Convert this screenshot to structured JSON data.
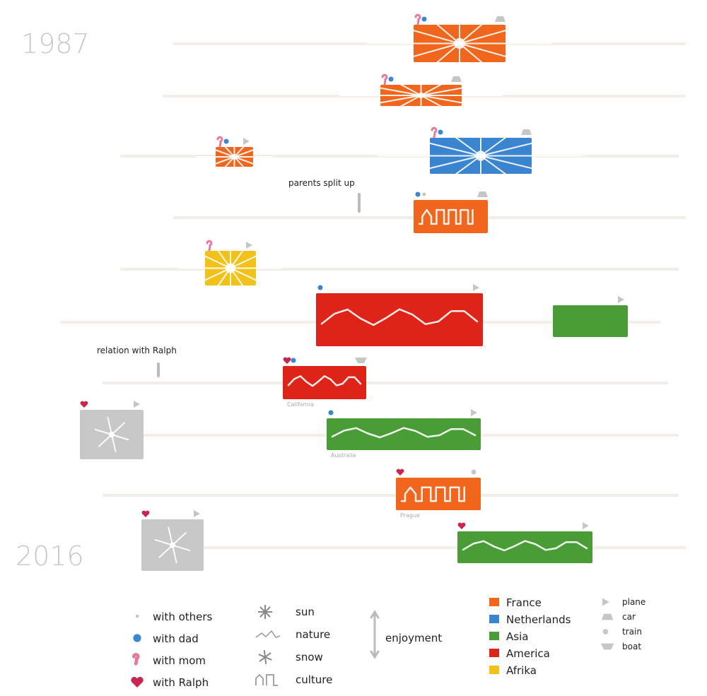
{
  "years": {
    "start": "1987",
    "end": "2016"
  },
  "annotations": [
    {
      "text": "parents split up"
    },
    {
      "text": "relation with Ralph"
    }
  ],
  "colors": {
    "France": "#f0661c",
    "Netherlands": "#3a84d0",
    "Asia": "#4a9d36",
    "America": "#de2418",
    "Afrika": "#f2c21a",
    "unknown": "#c8c8c8",
    "timeline": "#f3eee8",
    "dad": "#3a86cf",
    "mom": "#e57b9b",
    "ralph": "#c8264f",
    "others": "#c4c4c4"
  },
  "trips": [
    {
      "region": "France",
      "theme": "sun",
      "with": [
        "mom",
        "dad"
      ],
      "transport": "car"
    },
    {
      "region": "France",
      "theme": "sun",
      "with": [
        "mom",
        "dad"
      ],
      "transport": "car"
    },
    {
      "region": "France",
      "theme": "sun",
      "with": [
        "mom",
        "dad"
      ],
      "transport": "plane"
    },
    {
      "region": "Netherlands",
      "theme": "sun",
      "with": [
        "mom",
        "dad"
      ],
      "transport": "car"
    },
    {
      "region": "France",
      "theme": "culture",
      "with": [
        "dad",
        "others"
      ],
      "transport": "car"
    },
    {
      "region": "Afrika",
      "theme": "sun",
      "with": [
        "mom"
      ],
      "transport": "plane"
    },
    {
      "region": "America",
      "theme": "nature",
      "with": [
        "dad"
      ],
      "transport": "plane"
    },
    {
      "region": "Asia",
      "theme": "",
      "with": [],
      "transport": "plane"
    },
    {
      "region": "America",
      "theme": "nature",
      "with": [
        "ralph",
        "dad"
      ],
      "transport": "boat",
      "place": "California"
    },
    {
      "region": "unknown",
      "theme": "snow",
      "with": [
        "ralph"
      ],
      "transport": "plane"
    },
    {
      "region": "Asia",
      "theme": "nature",
      "with": [
        "dad"
      ],
      "transport": "plane",
      "place": "Australia"
    },
    {
      "region": "France",
      "theme": "culture",
      "with": [
        "ralph"
      ],
      "transport": "train",
      "place": "Prague"
    },
    {
      "region": "unknown",
      "theme": "snow",
      "with": [
        "ralph"
      ],
      "transport": "plane"
    },
    {
      "region": "Asia",
      "theme": "nature",
      "with": [
        "ralph"
      ],
      "transport": "plane"
    }
  ],
  "legend": {
    "companions": [
      {
        "key": "others",
        "label": "with others"
      },
      {
        "key": "dad",
        "label": "with dad"
      },
      {
        "key": "mom",
        "label": "with mom"
      },
      {
        "key": "ralph",
        "label": "with Ralph"
      }
    ],
    "themes": [
      {
        "key": "sun",
        "label": "sun"
      },
      {
        "key": "nature",
        "label": "nature"
      },
      {
        "key": "snow",
        "label": "snow"
      },
      {
        "key": "culture",
        "label": "culture"
      }
    ],
    "enjoyment": "enjoyment",
    "regions": [
      {
        "key": "France",
        "label": "France"
      },
      {
        "key": "Netherlands",
        "label": "Netherlands"
      },
      {
        "key": "Asia",
        "label": "Asia"
      },
      {
        "key": "America",
        "label": "America"
      },
      {
        "key": "Afrika",
        "label": "Afrika"
      }
    ],
    "transports": [
      {
        "key": "plane",
        "label": "plane"
      },
      {
        "key": "car",
        "label": "car"
      },
      {
        "key": "train",
        "label": "train"
      },
      {
        "key": "boat",
        "label": "boat"
      }
    ]
  }
}
